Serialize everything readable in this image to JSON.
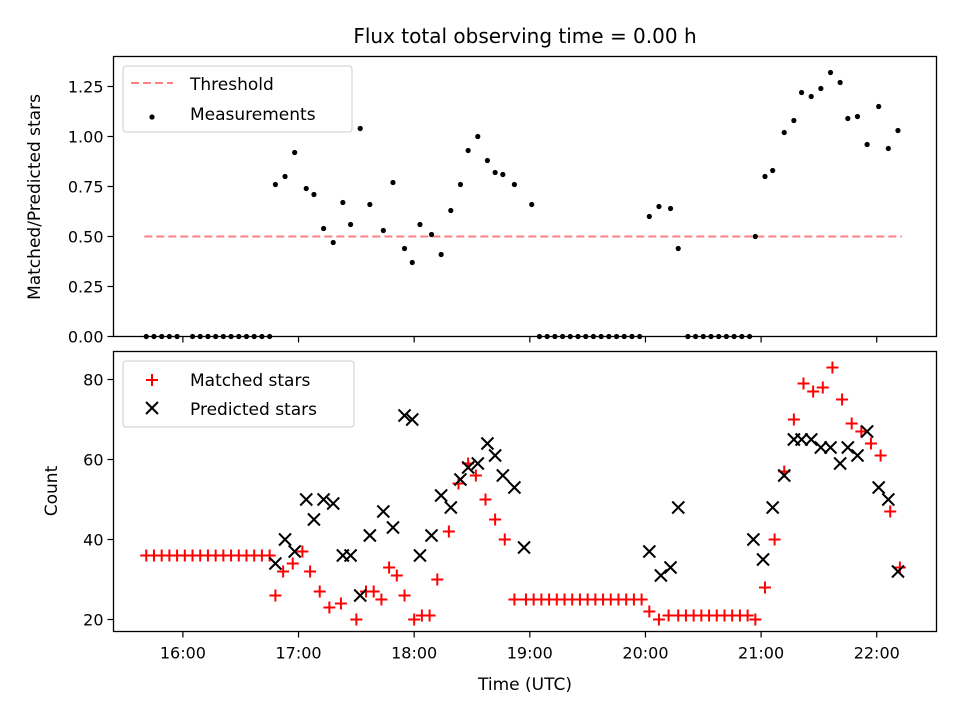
{
  "chart_data": [
    {
      "type": "scatter",
      "title": "Flux total observing time = 0.00 h",
      "xlabel": "",
      "ylabel": "Matched/Predicted stars",
      "xlim": [
        "15:24",
        "22:31"
      ],
      "ylim": [
        0,
        1.4
      ],
      "yticks": [
        0.0,
        0.25,
        0.5,
        0.75,
        1.0,
        1.25
      ],
      "ytick_labels": [
        "0.00",
        "0.25",
        "0.50",
        "0.75",
        "1.00",
        "1.25"
      ],
      "xticks": [
        "16:00",
        "17:00",
        "18:00",
        "19:00",
        "20:00",
        "21:00",
        "22:00"
      ],
      "show_xtick_labels": false,
      "legend": "upper-left",
      "grid": false,
      "series": [
        {
          "name": "Threshold",
          "kind": "line",
          "style": "dashed",
          "color": "#ff8080",
          "x": [
            "15:40",
            "22:13"
          ],
          "y": [
            0.5,
            0.5
          ]
        },
        {
          "name": "Measurements",
          "kind": "scatter",
          "color": "#000000",
          "x": [
            "15:41",
            "15:45",
            "15:49",
            "15:53",
            "15:57",
            "16:05",
            "16:09",
            "16:13",
            "16:17",
            "16:21",
            "16:25",
            "16:29",
            "16:33",
            "16:37",
            "16:41",
            "16:45",
            "16:48",
            "16:53",
            "16:58",
            "17:04",
            "17:08",
            "17:13",
            "17:18",
            "17:23",
            "17:27",
            "17:32",
            "17:37",
            "17:44",
            "17:49",
            "17:55",
            "17:59",
            "18:03",
            "18:09",
            "18:14",
            "18:19",
            "18:24",
            "18:28",
            "18:33",
            "18:38",
            "18:42",
            "18:46",
            "18:52",
            "19:01",
            "19:05",
            "19:09",
            "19:13",
            "19:17",
            "19:21",
            "19:25",
            "19:29",
            "19:33",
            "19:37",
            "19:41",
            "19:45",
            "19:49",
            "19:53",
            "19:57",
            "20:02",
            "20:07",
            "20:13",
            "20:17",
            "20:22",
            "20:26",
            "20:30",
            "20:34",
            "20:38",
            "20:42",
            "20:46",
            "20:50",
            "20:54",
            "20:57",
            "21:02",
            "21:06",
            "21:12",
            "21:17",
            "21:21",
            "21:26",
            "21:31",
            "21:36",
            "21:41",
            "21:45",
            "21:50",
            "21:55",
            "22:01",
            "22:06",
            "22:11"
          ],
          "y": [
            0,
            0,
            0,
            0,
            0,
            0,
            0,
            0,
            0,
            0,
            0,
            0,
            0,
            0,
            0,
            0,
            0.76,
            0.8,
            0.92,
            0.74,
            0.71,
            0.54,
            0.47,
            0.67,
            0.56,
            1.04,
            0.66,
            0.53,
            0.77,
            0.44,
            0.37,
            0.56,
            0.51,
            0.41,
            0.63,
            0.76,
            0.93,
            1.0,
            0.88,
            0.82,
            0.81,
            0.76,
            0.66,
            0,
            0,
            0,
            0,
            0,
            0,
            0,
            0,
            0,
            0,
            0,
            0,
            0,
            0,
            0.6,
            0.65,
            0.64,
            0.44,
            0,
            0,
            0,
            0,
            0,
            0,
            0,
            0,
            0,
            0.5,
            0.8,
            0.83,
            1.02,
            1.08,
            1.22,
            1.2,
            1.24,
            1.32,
            1.27,
            1.09,
            1.1,
            0.96,
            1.15,
            0.94,
            1.03
          ]
        }
      ]
    },
    {
      "type": "scatter",
      "title": "",
      "xlabel": "Time (UTC)",
      "ylabel": "Count",
      "xlim": [
        "15:24",
        "22:31"
      ],
      "ylim": [
        17,
        87
      ],
      "yticks": [
        20,
        40,
        60,
        80
      ],
      "ytick_labels": [
        "20",
        "40",
        "60",
        "80"
      ],
      "xticks": [
        "16:00",
        "17:00",
        "18:00",
        "19:00",
        "20:00",
        "21:00",
        "22:00"
      ],
      "xtick_labels": [
        "16:00",
        "17:00",
        "18:00",
        "19:00",
        "20:00",
        "21:00",
        "22:00"
      ],
      "legend": "upper-left",
      "grid": false,
      "series": [
        {
          "name": "Matched stars",
          "marker": "plus",
          "color": "#ff0000",
          "x": [
            "15:41",
            "15:45",
            "15:49",
            "15:53",
            "15:57",
            "16:01",
            "16:05",
            "16:09",
            "16:13",
            "16:17",
            "16:21",
            "16:25",
            "16:29",
            "16:33",
            "16:37",
            "16:41",
            "16:45",
            "16:48",
            "16:52",
            "16:57",
            "17:02",
            "17:06",
            "17:11",
            "17:16",
            "17:22",
            "17:30",
            "17:35",
            "17:39",
            "17:43",
            "17:47",
            "17:51",
            "17:55",
            "18:00",
            "18:04",
            "18:08",
            "18:12",
            "18:18",
            "18:23",
            "18:28",
            "18:32",
            "18:37",
            "18:42",
            "18:47",
            "18:52",
            "18:58",
            "19:02",
            "19:06",
            "19:10",
            "19:14",
            "19:18",
            "19:22",
            "19:26",
            "19:30",
            "19:34",
            "19:38",
            "19:42",
            "19:46",
            "19:50",
            "19:54",
            "19:58",
            "20:02",
            "20:07",
            "20:12",
            "20:17",
            "20:21",
            "20:25",
            "20:29",
            "20:33",
            "20:37",
            "20:41",
            "20:45",
            "20:49",
            "20:53",
            "20:57",
            "21:02",
            "21:07",
            "21:12",
            "21:17",
            "21:22",
            "21:27",
            "21:32",
            "21:37",
            "21:42",
            "21:47",
            "21:52",
            "21:57",
            "22:02",
            "22:07",
            "22:12"
          ],
          "y": [
            36,
            36,
            36,
            36,
            36,
            36,
            36,
            36,
            36,
            36,
            36,
            36,
            36,
            36,
            36,
            36,
            36,
            26,
            32,
            34,
            37,
            32,
            27,
            23,
            24,
            20,
            27,
            27,
            25,
            33,
            31,
            26,
            20,
            21,
            21,
            30,
            42,
            54,
            59,
            56,
            50,
            45,
            40,
            25,
            25,
            25,
            25,
            25,
            25,
            25,
            25,
            25,
            25,
            25,
            25,
            25,
            25,
            25,
            25,
            25,
            22,
            20,
            21,
            21,
            21,
            21,
            21,
            21,
            21,
            21,
            21,
            21,
            21,
            20,
            28,
            40,
            57,
            70,
            79,
            77,
            78,
            83,
            75,
            69,
            67,
            64,
            61,
            47,
            33
          ]
        },
        {
          "name": "Predicted stars",
          "marker": "x",
          "color": "#000000",
          "x": [
            "16:48",
            "16:53",
            "16:58",
            "17:04",
            "17:08",
            "17:13",
            "17:18",
            "17:23",
            "17:27",
            "17:32",
            "17:37",
            "17:44",
            "17:49",
            "17:55",
            "17:59",
            "18:03",
            "18:09",
            "18:14",
            "18:19",
            "18:24",
            "18:28",
            "18:33",
            "18:38",
            "18:42",
            "18:46",
            "18:52",
            "18:57",
            "20:02",
            "20:08",
            "20:13",
            "20:17",
            "20:56",
            "21:01",
            "21:06",
            "21:12",
            "21:17",
            "21:21",
            "21:26",
            "21:31",
            "21:36",
            "21:41",
            "21:45",
            "21:50",
            "21:55",
            "22:01",
            "22:06",
            "22:11"
          ],
          "y": [
            34,
            40,
            37,
            50,
            45,
            50,
            49,
            36,
            36,
            26,
            41,
            47,
            43,
            71,
            70,
            36,
            41,
            51,
            48,
            55,
            58,
            59,
            64,
            61,
            56,
            53,
            38,
            37,
            31,
            33,
            48,
            40,
            35,
            48,
            56,
            65,
            65,
            65,
            63,
            63,
            59,
            63,
            61,
            67,
            53,
            50,
            32
          ]
        }
      ]
    }
  ]
}
